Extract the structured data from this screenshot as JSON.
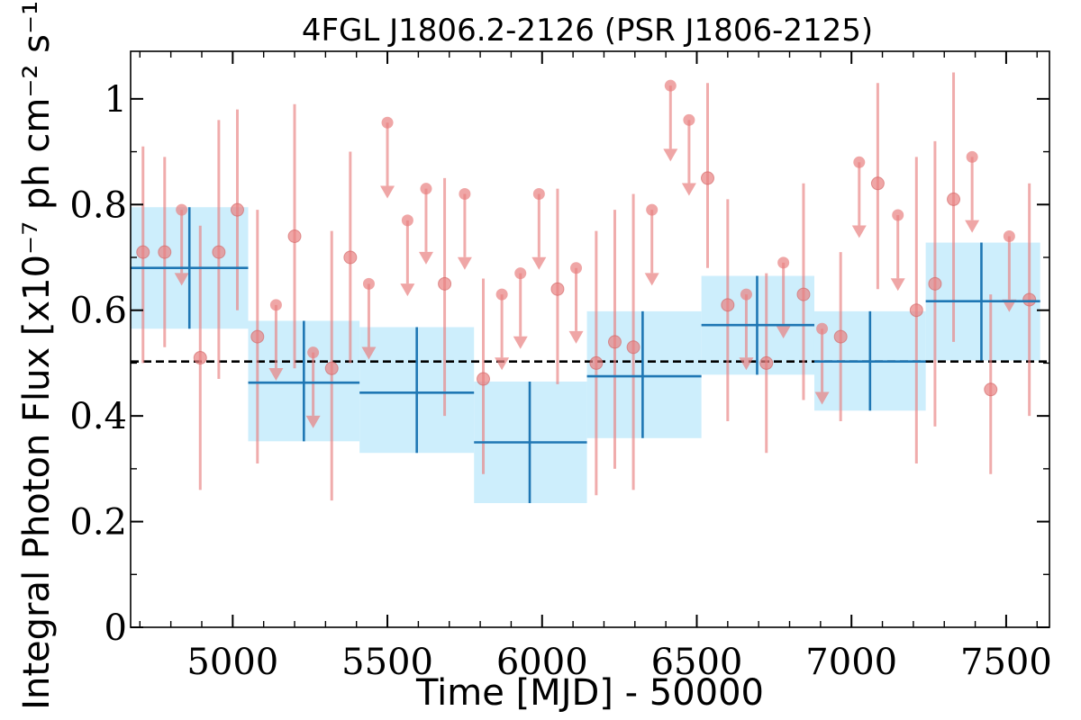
{
  "chart_data": {
    "type": "scatter",
    "title": "4FGL J1806.2-2126 (PSR J1806-2125)",
    "xlabel": "Time [MJD] - 50000",
    "ylabel": "Integral Photon Flux [x10⁻⁷ ph cm⁻² s⁻¹]",
    "xlim": [
      4670,
      7640
    ],
    "ylim": [
      0,
      1.09
    ],
    "xticks": [
      5000,
      5500,
      6000,
      6500,
      7000,
      7500
    ],
    "xtick_labels": [
      "5000",
      "5500",
      "6000",
      "6500",
      "7000",
      "7500"
    ],
    "yticks": [
      0,
      0.2,
      0.4,
      0.6,
      0.8,
      1.0
    ],
    "ytick_labels": [
      "0",
      "0.2",
      "0.4",
      "0.6",
      "0.8",
      "1"
    ],
    "grid": false,
    "mean_flux": 0.503,
    "colors": {
      "short_points": "#e88080",
      "long_bins": "#1f77b4",
      "long_bins_band": "#cdeefc",
      "mean_line": "#000000"
    },
    "series": [
      {
        "values": [
          {
            "x": 4710,
            "y": 0.71,
            "lo": 0.5,
            "hi": 0.91
          },
          {
            "x": 4780,
            "y": 0.71,
            "lo": 0.53,
            "hi": 0.89
          },
          {
            "x": 4895,
            "y": 0.51,
            "lo": 0.26,
            "hi": 0.76
          },
          {
            "x": 4955,
            "y": 0.71,
            "lo": 0.47,
            "hi": 0.96
          },
          {
            "x": 5015,
            "y": 0.79,
            "lo": 0.6,
            "hi": 0.98
          },
          {
            "x": 5080,
            "y": 0.55,
            "lo": 0.31,
            "hi": 0.79
          },
          {
            "x": 5200,
            "y": 0.74,
            "lo": 0.49,
            "hi": 0.99
          },
          {
            "x": 5320,
            "y": 0.49,
            "lo": 0.24,
            "hi": 0.75
          },
          {
            "x": 5380,
            "y": 0.7,
            "lo": 0.5,
            "hi": 0.9
          },
          {
            "x": 5685,
            "y": 0.65,
            "lo": 0.4,
            "hi": 0.85
          },
          {
            "x": 5810,
            "y": 0.47,
            "lo": 0.29,
            "hi": 0.66
          },
          {
            "x": 6050,
            "y": 0.64,
            "lo": 0.46,
            "hi": 0.83
          },
          {
            "x": 6175,
            "y": 0.5,
            "lo": 0.25,
            "hi": 0.75
          },
          {
            "x": 6235,
            "y": 0.54,
            "lo": 0.3,
            "hi": 0.79
          },
          {
            "x": 6295,
            "y": 0.53,
            "lo": 0.26,
            "hi": 0.82
          },
          {
            "x": 6535,
            "y": 0.85,
            "lo": 0.68,
            "hi": 1.03
          },
          {
            "x": 6600,
            "y": 0.61,
            "lo": 0.39,
            "hi": 0.81
          },
          {
            "x": 6725,
            "y": 0.5,
            "lo": 0.33,
            "hi": 0.67
          },
          {
            "x": 6845,
            "y": 0.63,
            "lo": 0.43,
            "hi": 0.84
          },
          {
            "x": 6965,
            "y": 0.55,
            "lo": 0.39,
            "hi": 0.71
          },
          {
            "x": 7085,
            "y": 0.84,
            "lo": 0.64,
            "hi": 1.03
          },
          {
            "x": 7210,
            "y": 0.6,
            "lo": 0.31,
            "hi": 0.89
          },
          {
            "x": 7270,
            "y": 0.65,
            "lo": 0.38,
            "hi": 0.92
          },
          {
            "x": 7330,
            "y": 0.81,
            "lo": 0.54,
            "hi": 1.05
          },
          {
            "x": 7450,
            "y": 0.45,
            "lo": 0.29,
            "hi": 0.63
          },
          {
            "x": 7575,
            "y": 0.62,
            "lo": 0.4,
            "hi": 0.84
          }
        ]
      },
      {
        "values": [
          {
            "x": 4835,
            "y": 0.79,
            "arrow_to": 0.65
          },
          {
            "x": 5140,
            "y": 0.61,
            "arrow_to": 0.47
          },
          {
            "x": 5260,
            "y": 0.52,
            "arrow_to": 0.38
          },
          {
            "x": 5440,
            "y": 0.65,
            "arrow_to": 0.51
          },
          {
            "x": 5500,
            "y": 0.955,
            "arrow_to": 0.815
          },
          {
            "x": 5565,
            "y": 0.77,
            "arrow_to": 0.63
          },
          {
            "x": 5625,
            "y": 0.83,
            "arrow_to": 0.69
          },
          {
            "x": 5750,
            "y": 0.82,
            "arrow_to": 0.68
          },
          {
            "x": 5870,
            "y": 0.63,
            "arrow_to": 0.49
          },
          {
            "x": 5930,
            "y": 0.67,
            "arrow_to": 0.53
          },
          {
            "x": 5990,
            "y": 0.82,
            "arrow_to": 0.68
          },
          {
            "x": 6110,
            "y": 0.68,
            "arrow_to": 0.54
          },
          {
            "x": 6355,
            "y": 0.79,
            "arrow_to": 0.65
          },
          {
            "x": 6415,
            "y": 1.025,
            "arrow_to": 0.885
          },
          {
            "x": 6475,
            "y": 0.96,
            "arrow_to": 0.82
          },
          {
            "x": 6660,
            "y": 0.63,
            "arrow_to": 0.49
          },
          {
            "x": 6780,
            "y": 0.69,
            "arrow_to": 0.55
          },
          {
            "x": 6905,
            "y": 0.565,
            "arrow_to": 0.425
          },
          {
            "x": 7025,
            "y": 0.88,
            "arrow_to": 0.74
          },
          {
            "x": 7150,
            "y": 0.78,
            "arrow_to": 0.64
          },
          {
            "x": 7390,
            "y": 0.89,
            "arrow_to": 0.75
          },
          {
            "x": 7510,
            "y": 0.74,
            "arrow_to": 0.6
          }
        ]
      },
      {
        "values": [
          {
            "x": 4860,
            "x0": 4670,
            "x1": 5050,
            "y": 0.68,
            "lo": 0.565,
            "hi": 0.795
          },
          {
            "x": 5230,
            "x0": 5050,
            "x1": 5410,
            "y": 0.463,
            "lo": 0.352,
            "hi": 0.58
          },
          {
            "x": 5595,
            "x0": 5410,
            "x1": 5780,
            "y": 0.444,
            "lo": 0.33,
            "hi": 0.568
          },
          {
            "x": 5960,
            "x0": 5780,
            "x1": 6145,
            "y": 0.35,
            "lo": 0.235,
            "hi": 0.465
          },
          {
            "x": 6325,
            "x0": 6145,
            "x1": 6515,
            "y": 0.475,
            "lo": 0.358,
            "hi": 0.598
          },
          {
            "x": 6695,
            "x0": 6515,
            "x1": 6880,
            "y": 0.572,
            "lo": 0.478,
            "hi": 0.665
          },
          {
            "x": 7060,
            "x0": 6880,
            "x1": 7240,
            "y": 0.503,
            "lo": 0.41,
            "hi": 0.598
          },
          {
            "x": 7420,
            "x0": 7240,
            "x1": 7610,
            "y": 0.617,
            "lo": 0.505,
            "hi": 0.728
          }
        ]
      }
    ]
  }
}
